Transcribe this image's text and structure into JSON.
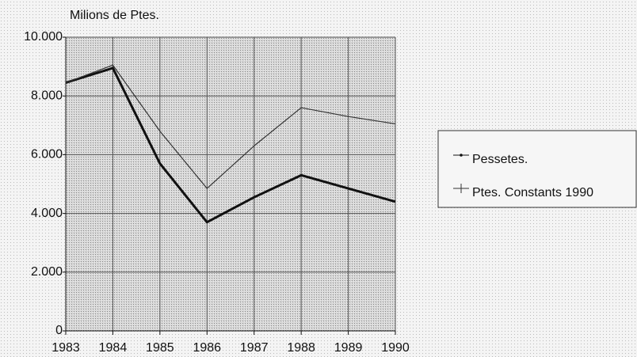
{
  "chart_data": {
    "type": "line",
    "y_label": "Milions de Ptes.",
    "x": [
      1983,
      1984,
      1985,
      1986,
      1987,
      1988,
      1989,
      1990
    ],
    "xlim": [
      1983,
      1990
    ],
    "xticks": [
      1983,
      1984,
      1985,
      1986,
      1987,
      1988,
      1989,
      1990
    ],
    "ylim": [
      0,
      10000
    ],
    "yticks": [
      0,
      {
        "value": 2000,
        "label": "2.000"
      },
      {
        "value": 4000,
        "label": "4.000"
      },
      {
        "value": 6000,
        "label": "6.000"
      },
      {
        "value": 8000,
        "label": "8.000"
      },
      {
        "value": 10000,
        "label": "10.000"
      }
    ],
    "grid": true,
    "legend": "right",
    "series": [
      {
        "name": "Pessetes.",
        "color": "#111111",
        "values": [
          8450,
          8950,
          5700,
          3700,
          4550,
          5300,
          4850,
          4400
        ]
      },
      {
        "name": "Ptes. Constants 1990",
        "color": "#333333",
        "values": [
          8450,
          9050,
          6800,
          4850,
          6300,
          7600,
          7300,
          7050
        ]
      }
    ]
  }
}
